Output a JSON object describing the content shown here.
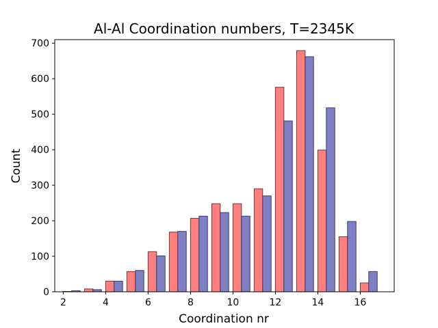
{
  "chart_data": {
    "type": "bar",
    "title": "Al-Al Coordination numbers, T=2345K",
    "xlabel": "Coordination nr",
    "ylabel": "Count",
    "xlim": [
      1.6,
      17.6
    ],
    "ylim": [
      0,
      710
    ],
    "xticks": [
      2,
      4,
      6,
      8,
      10,
      12,
      14,
      16
    ],
    "yticks": [
      0,
      100,
      200,
      300,
      400,
      500,
      600,
      700
    ],
    "grid": false,
    "legend": "none",
    "categories": [
      2,
      3,
      4,
      5,
      6,
      7,
      8,
      9,
      10,
      11,
      12,
      13,
      14,
      15,
      16
    ],
    "series": [
      {
        "color": "#ff7f7f",
        "edgecolor": "#6b3a3a",
        "values": [
          1,
          8,
          30,
          57,
          113,
          168,
          207,
          248,
          248,
          290,
          576,
          679,
          399,
          155,
          25
        ]
      },
      {
        "color": "#7f7fc4",
        "edgecolor": "#3a3a6b",
        "values": [
          3,
          6,
          30,
          60,
          101,
          170,
          213,
          223,
          213,
          270,
          481,
          662,
          518,
          198,
          57
        ]
      }
    ]
  }
}
